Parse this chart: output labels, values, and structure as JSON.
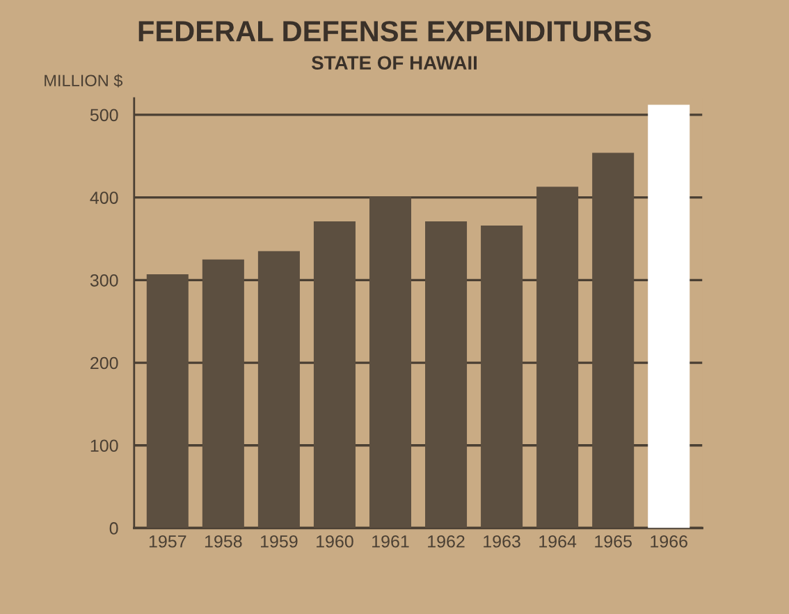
{
  "chart_data": {
    "type": "bar",
    "title": "FEDERAL DEFENSE EXPENDITURES",
    "subtitle": "STATE OF HAWAII",
    "ylabel": "MILLION $",
    "categories": [
      "1957",
      "1958",
      "1959",
      "1960",
      "1961",
      "1962",
      "1963",
      "1964",
      "1965",
      "1966"
    ],
    "values": [
      307,
      325,
      335,
      371,
      401,
      371,
      366,
      413,
      454,
      512
    ],
    "colors": [
      "#5c4f40",
      "#5c4f40",
      "#5c4f40",
      "#5c4f40",
      "#5c4f40",
      "#5c4f40",
      "#5c4f40",
      "#5c4f40",
      "#5c4f40",
      "#ffffff"
    ],
    "ylim": [
      0,
      520
    ],
    "yticks": [
      0,
      100,
      200,
      300,
      400,
      500
    ],
    "grid": "y"
  }
}
